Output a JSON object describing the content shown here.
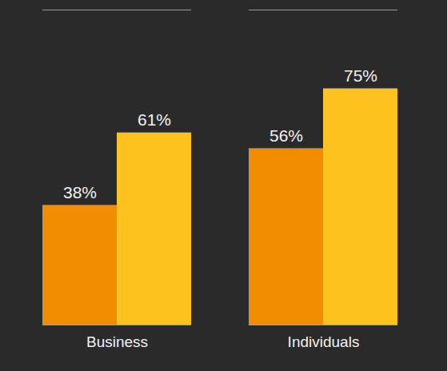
{
  "chart_data": {
    "type": "bar",
    "categories": [
      "Business",
      "Individuals"
    ],
    "series": [
      {
        "color": "#f28c00",
        "values": [
          38,
          56
        ],
        "value_labels": [
          "38%",
          "56%"
        ]
      },
      {
        "color": "#fdc21d",
        "values": [
          61,
          75
        ],
        "value_labels": [
          "61%",
          "75%"
        ]
      }
    ],
    "ylim": [
      0,
      100
    ],
    "yticks": [],
    "grid": false,
    "data_labels": true,
    "tick_labels": "x"
  }
}
